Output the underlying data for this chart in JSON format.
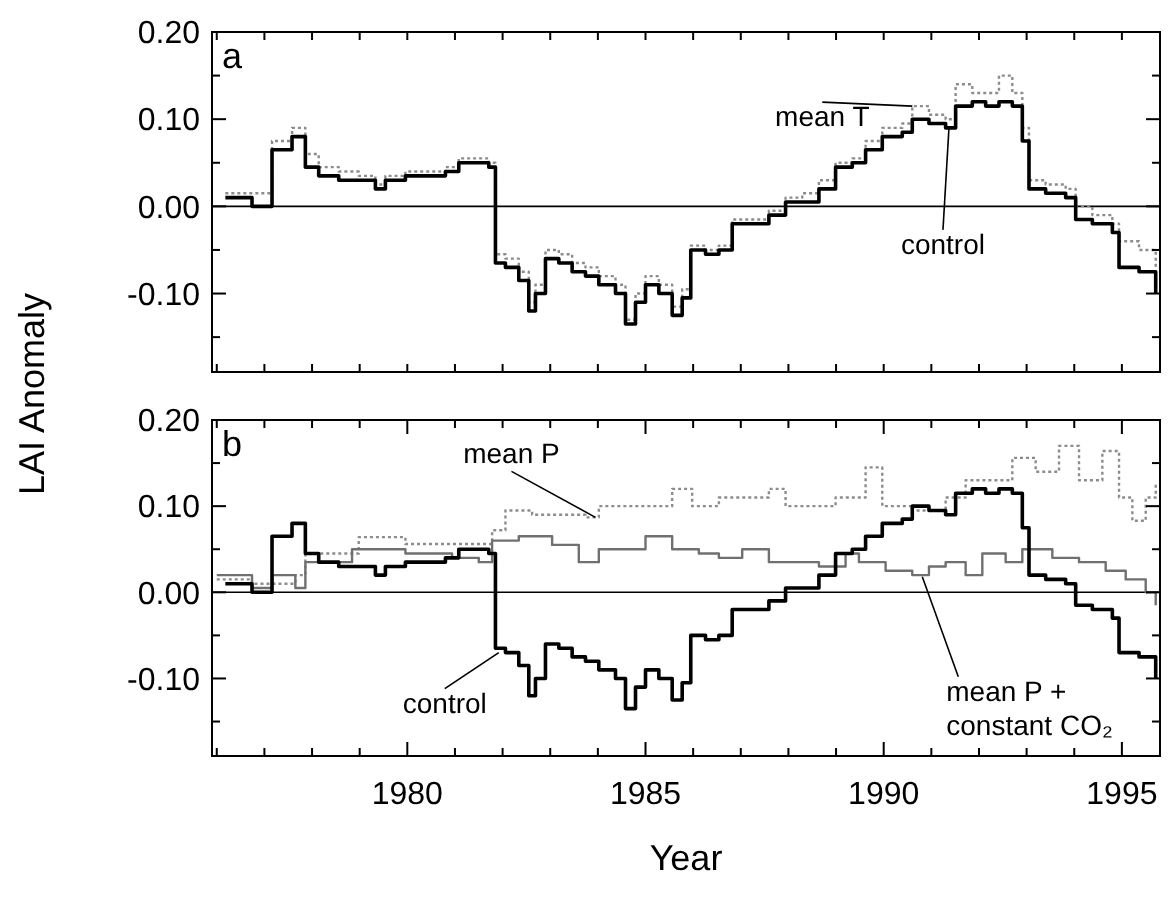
{
  "chart_data": [
    {
      "type": "step",
      "title": "a",
      "ylabel": "LAI Anomaly",
      "xlim": [
        1975.9,
        1995.8
      ],
      "ylim": [
        -0.19,
        0.2
      ],
      "xticks": [
        {
          "value": 1976,
          "label": null
        },
        {
          "value": 1977,
          "label": null
        },
        {
          "value": 1978,
          "label": null
        },
        {
          "value": 1979,
          "label": null
        },
        {
          "value": 1980,
          "label": null
        },
        {
          "value": 1981,
          "label": null
        },
        {
          "value": 1982,
          "label": null
        },
        {
          "value": 1983,
          "label": null
        },
        {
          "value": 1984,
          "label": null
        },
        {
          "value": 1985,
          "label": null
        },
        {
          "value": 1986,
          "label": null
        },
        {
          "value": 1987,
          "label": null
        },
        {
          "value": 1988,
          "label": null
        },
        {
          "value": 1989,
          "label": null
        },
        {
          "value": 1990,
          "label": null
        },
        {
          "value": 1991,
          "label": null
        },
        {
          "value": 1992,
          "label": null
        },
        {
          "value": 1993,
          "label": null
        },
        {
          "value": 1994,
          "label": null
        },
        {
          "value": 1995,
          "label": null
        }
      ],
      "yticks": [
        {
          "value": -0.15,
          "label": null
        },
        {
          "value": -0.1,
          "label": "-0.10"
        },
        {
          "value": -0.05,
          "label": null
        },
        {
          "value": 0,
          "label": "0.00"
        },
        {
          "value": 0.05,
          "label": null
        },
        {
          "value": 0.1,
          "label": "0.10"
        },
        {
          "value": 0.15,
          "label": null
        },
        {
          "value": 0.2,
          "label": "0.20"
        }
      ],
      "tick_labels": "y",
      "grid": false,
      "ref_lines": [
        {
          "axis": "y",
          "value": 0,
          "color": "#000000"
        }
      ],
      "x": [
        1976.18,
        1976.74,
        1977.16,
        1977.58,
        1977.86,
        1978.14,
        1978.56,
        1978.98,
        1979.33,
        1979.54,
        1979.96,
        1980.38,
        1980.8,
        1981.08,
        1981.5,
        1981.71,
        1981.85,
        1982.06,
        1982.34,
        1982.55,
        1982.69,
        1982.9,
        1983.18,
        1983.46,
        1983.74,
        1984.02,
        1984.37,
        1984.58,
        1984.79,
        1985.0,
        1985.28,
        1985.56,
        1985.77,
        1985.95,
        1986.26,
        1986.54,
        1986.82,
        1987.24,
        1987.59,
        1987.94,
        1988.29,
        1988.64,
        1988.99,
        1989.34,
        1989.62,
        1989.97,
        1990.39,
        1990.6,
        1990.95,
        1991.3,
        1991.51,
        1991.86,
        1992.14,
        1992.42,
        1992.7,
        1992.91,
        1993.05,
        1993.4,
        1993.82,
        1994.03,
        1994.38,
        1994.8,
        1994.94,
        1995.36,
        1995.71
      ],
      "series": [
        {
          "color": "#8c8c8c",
          "line_style": "dotted",
          "values": [
            0.015,
            0.015,
            0.075,
            0.09,
            0.06,
            0.045,
            0.04,
            0.035,
            0.025,
            0.035,
            0.04,
            0.04,
            0.045,
            0.055,
            0.055,
            0.05,
            -0.055,
            -0.06,
            -0.075,
            -0.11,
            -0.09,
            -0.05,
            -0.055,
            -0.065,
            -0.07,
            -0.08,
            -0.09,
            -0.13,
            -0.1,
            -0.08,
            -0.09,
            -0.115,
            -0.095,
            -0.045,
            -0.05,
            -0.045,
            -0.015,
            -0.015,
            -0.005,
            0.01,
            0.015,
            0.03,
            0.05,
            0.055,
            0.075,
            0.09,
            0.095,
            0.115,
            0.105,
            0.1,
            0.14,
            0.13,
            0.13,
            0.15,
            0.13,
            0.09,
            0.03,
            0.025,
            0.02,
            0.0,
            -0.01,
            -0.02,
            -0.04,
            -0.05,
            -0.07
          ]
        },
        {
          "color": "#000000",
          "line_style": "solid",
          "values": [
            0.01,
            0.0,
            0.065,
            0.08,
            0.045,
            0.035,
            0.03,
            0.03,
            0.02,
            0.03,
            0.035,
            0.035,
            0.04,
            0.05,
            0.05,
            0.045,
            -0.065,
            -0.07,
            -0.085,
            -0.12,
            -0.1,
            -0.06,
            -0.065,
            -0.075,
            -0.08,
            -0.09,
            -0.1,
            -0.135,
            -0.11,
            -0.09,
            -0.1,
            -0.125,
            -0.105,
            -0.05,
            -0.055,
            -0.05,
            -0.02,
            -0.02,
            -0.01,
            0.005,
            0.005,
            0.02,
            0.045,
            0.05,
            0.065,
            0.08,
            0.085,
            0.1,
            0.095,
            0.09,
            0.115,
            0.12,
            0.115,
            0.12,
            0.115,
            0.075,
            0.02,
            0.015,
            0.01,
            -0.015,
            -0.02,
            -0.03,
            -0.07,
            -0.075,
            -0.1
          ]
        }
      ],
      "annotations": [
        {
          "text": "mean T",
          "x": 1990.6,
          "y": 0.115
        },
        {
          "text": "control",
          "x": 1991.37,
          "y": 0.09
        }
      ]
    },
    {
      "type": "step",
      "title": "b",
      "xlabel": "Year",
      "xlim": [
        1975.9,
        1995.8
      ],
      "ylim": [
        -0.19,
        0.2
      ],
      "xticks": [
        {
          "value": 1976,
          "label": null
        },
        {
          "value": 1977,
          "label": null
        },
        {
          "value": 1978,
          "label": null
        },
        {
          "value": 1979,
          "label": null
        },
        {
          "value": 1980,
          "label": "1980"
        },
        {
          "value": 1981,
          "label": null
        },
        {
          "value": 1982,
          "label": null
        },
        {
          "value": 1983,
          "label": null
        },
        {
          "value": 1984,
          "label": null
        },
        {
          "value": 1985,
          "label": "1985"
        },
        {
          "value": 1986,
          "label": null
        },
        {
          "value": 1987,
          "label": null
        },
        {
          "value": 1988,
          "label": null
        },
        {
          "value": 1989,
          "label": null
        },
        {
          "value": 1990,
          "label": "1990"
        },
        {
          "value": 1991,
          "label": null
        },
        {
          "value": 1992,
          "label": null
        },
        {
          "value": 1993,
          "label": null
        },
        {
          "value": 1994,
          "label": null
        },
        {
          "value": 1995,
          "label": "1995"
        }
      ],
      "yticks": [
        {
          "value": -0.15,
          "label": null
        },
        {
          "value": -0.1,
          "label": "-0.10"
        },
        {
          "value": -0.05,
          "label": null
        },
        {
          "value": 0,
          "label": "0.00"
        },
        {
          "value": 0.05,
          "label": null
        },
        {
          "value": 0.1,
          "label": "0.10"
        },
        {
          "value": 0.15,
          "label": null
        },
        {
          "value": 0.2,
          "label": "0.20"
        }
      ],
      "grid": false,
      "ref_lines": [
        {
          "axis": "y",
          "value": 0,
          "color": "#000000"
        }
      ],
      "series": [
        {
          "color": "#8c8c8c",
          "line_style": "dotted",
          "x": [
            1976.0,
            1976.74,
            1977.65,
            1977.86,
            1978.98,
            1979.96,
            1981.78,
            1982.06,
            1982.62,
            1983.74,
            1984.02,
            1985.0,
            1985.56,
            1985.98,
            1986.54,
            1987.59,
            1987.94,
            1988.64,
            1988.99,
            1989.62,
            1989.97,
            1990.6,
            1991.3,
            1991.72,
            1992.14,
            1992.7,
            1993.19,
            1993.68,
            1994.1,
            1994.59,
            1994.94,
            1995.22,
            1995.5,
            1995.71
          ],
          "values": [
            0.015,
            0.01,
            0.02,
            0.045,
            0.064,
            0.056,
            0.072,
            0.095,
            0.09,
            0.087,
            0.1,
            0.1,
            0.12,
            0.1,
            0.11,
            0.12,
            0.1,
            0.1,
            0.11,
            0.145,
            0.1,
            0.095,
            0.11,
            0.13,
            0.13,
            0.156,
            0.14,
            0.17,
            0.13,
            0.164,
            0.11,
            0.083,
            0.11,
            0.125
          ]
        },
        {
          "color": "#707070",
          "line_style": "solid",
          "x": [
            1976.0,
            1976.74,
            1977.16,
            1977.65,
            1977.86,
            1978.84,
            1979.96,
            1980.94,
            1981.5,
            1981.78,
            1982.34,
            1983.04,
            1983.6,
            1984.02,
            1985.0,
            1985.56,
            1986.12,
            1986.54,
            1987.03,
            1987.59,
            1988.22,
            1988.64,
            1989.2,
            1989.48,
            1990.04,
            1990.6,
            1990.95,
            1991.3,
            1991.72,
            1992.07,
            1992.56,
            1992.91,
            1993.54,
            1994.1,
            1994.66,
            1995.08,
            1995.5,
            1995.71
          ],
          "values": [
            0.02,
            0.005,
            0.02,
            0.005,
            0.035,
            0.05,
            0.045,
            0.04,
            0.035,
            0.06,
            0.065,
            0.055,
            0.035,
            0.05,
            0.065,
            0.05,
            0.045,
            0.04,
            0.05,
            0.035,
            0.035,
            0.03,
            0.045,
            0.035,
            0.025,
            0.02,
            0.03,
            0.035,
            0.02,
            0.045,
            0.035,
            0.05,
            0.04,
            0.035,
            0.025,
            0.015,
            0.0,
            -0.015
          ]
        },
        {
          "color": "#000000",
          "line_style": "solid",
          "x": [
            1976.18,
            1976.74,
            1977.16,
            1977.58,
            1977.86,
            1978.14,
            1978.56,
            1978.98,
            1979.33,
            1979.54,
            1979.96,
            1980.38,
            1980.8,
            1981.08,
            1981.5,
            1981.71,
            1981.85,
            1982.06,
            1982.34,
            1982.55,
            1982.69,
            1982.9,
            1983.18,
            1983.46,
            1983.74,
            1984.02,
            1984.37,
            1984.58,
            1984.79,
            1985.0,
            1985.28,
            1985.56,
            1985.77,
            1985.95,
            1986.26,
            1986.54,
            1986.82,
            1987.24,
            1987.59,
            1987.94,
            1988.29,
            1988.64,
            1988.99,
            1989.34,
            1989.62,
            1989.97,
            1990.39,
            1990.6,
            1990.95,
            1991.3,
            1991.51,
            1991.86,
            1992.14,
            1992.42,
            1992.7,
            1992.91,
            1993.05,
            1993.4,
            1993.82,
            1994.03,
            1994.38,
            1994.8,
            1994.94,
            1995.36,
            1995.71
          ],
          "values": [
            0.01,
            0.0,
            0.065,
            0.08,
            0.045,
            0.035,
            0.03,
            0.03,
            0.02,
            0.03,
            0.035,
            0.035,
            0.04,
            0.05,
            0.05,
            0.045,
            -0.065,
            -0.07,
            -0.085,
            -0.12,
            -0.1,
            -0.06,
            -0.065,
            -0.075,
            -0.08,
            -0.09,
            -0.1,
            -0.135,
            -0.11,
            -0.09,
            -0.1,
            -0.125,
            -0.105,
            -0.05,
            -0.055,
            -0.05,
            -0.02,
            -0.02,
            -0.01,
            0.005,
            0.005,
            0.02,
            0.045,
            0.05,
            0.065,
            0.08,
            0.085,
            0.1,
            0.095,
            0.09,
            0.115,
            0.12,
            0.115,
            0.12,
            0.115,
            0.075,
            0.02,
            0.015,
            0.01,
            -0.015,
            -0.02,
            -0.03,
            -0.07,
            -0.075,
            -0.1
          ]
        }
      ],
      "annotations": [
        {
          "text": "mean P",
          "x": 1983.95,
          "y": 0.087
        },
        {
          "text": "control",
          "x": 1981.92,
          "y": -0.07
        },
        {
          "text": "mean P +\nconstant CO₂",
          "x": 1990.81,
          "y": 0.018
        }
      ]
    }
  ]
}
